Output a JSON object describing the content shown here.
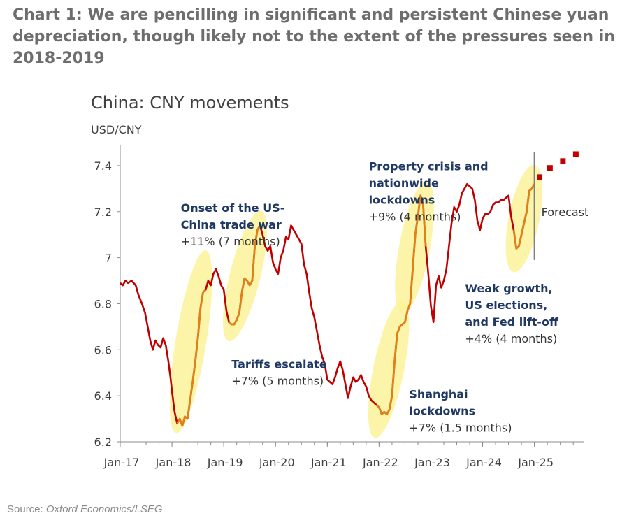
{
  "heading": "Chart 1: We are pencilling in significant and persistent Chinese yuan depreciation, though likely not to the extent of the pressures seen in 2018-2019",
  "source_label": "Source:",
  "source_text": "Oxford Economics/LSEG",
  "colors": {
    "line": "#c00000",
    "highlight_line": "#e0801a",
    "ellipse": "#fbf39a",
    "forecast": "#c00000",
    "axis": "#8c8c8c",
    "annotation_bold": "#1f3864",
    "text": "#333333"
  },
  "chart_data": {
    "type": "line",
    "title": "China: CNY movements",
    "ylabel": "USD/CNY",
    "xlabel": "",
    "ylim": [
      6.2,
      7.5
    ],
    "xlim": [
      2017.0,
      2025.95
    ],
    "yticks": [
      6.2,
      6.4,
      6.6,
      6.8,
      7,
      7.2,
      7.4
    ],
    "xticks": [
      {
        "t": 2017.0,
        "label": "Jan-17"
      },
      {
        "t": 2018.0,
        "label": "Jan-18"
      },
      {
        "t": 2019.0,
        "label": "Jan-19"
      },
      {
        "t": 2020.0,
        "label": "Jan-20"
      },
      {
        "t": 2021.0,
        "label": "Jan-21"
      },
      {
        "t": 2022.0,
        "label": "Jan-22"
      },
      {
        "t": 2023.0,
        "label": "Jan-23"
      },
      {
        "t": 2024.0,
        "label": "Jan-24"
      },
      {
        "t": 2025.0,
        "label": "Jan-25"
      }
    ],
    "grid": false,
    "series": [
      {
        "points": [
          [
            2017.0,
            6.89
          ],
          [
            2017.05,
            6.88
          ],
          [
            2017.1,
            6.9
          ],
          [
            2017.15,
            6.89
          ],
          [
            2017.22,
            6.9
          ],
          [
            2017.3,
            6.88
          ],
          [
            2017.35,
            6.84
          ],
          [
            2017.42,
            6.8
          ],
          [
            2017.48,
            6.76
          ],
          [
            2017.53,
            6.7
          ],
          [
            2017.58,
            6.64
          ],
          [
            2017.63,
            6.6
          ],
          [
            2017.68,
            6.64
          ],
          [
            2017.73,
            6.62
          ],
          [
            2017.78,
            6.61
          ],
          [
            2017.83,
            6.65
          ],
          [
            2017.88,
            6.62
          ],
          [
            2017.93,
            6.55
          ],
          [
            2017.97,
            6.48
          ],
          [
            2018.0,
            6.42
          ],
          [
            2018.05,
            6.33
          ],
          [
            2018.1,
            6.28
          ],
          [
            2018.15,
            6.3
          ],
          [
            2018.2,
            6.27
          ],
          [
            2018.25,
            6.31
          ],
          [
            2018.3,
            6.3
          ],
          [
            2018.35,
            6.38
          ],
          [
            2018.4,
            6.46
          ],
          [
            2018.45,
            6.55
          ],
          [
            2018.5,
            6.65
          ],
          [
            2018.55,
            6.78
          ],
          [
            2018.6,
            6.85
          ],
          [
            2018.65,
            6.86
          ],
          [
            2018.7,
            6.9
          ],
          [
            2018.75,
            6.88
          ],
          [
            2018.8,
            6.93
          ],
          [
            2018.85,
            6.95
          ],
          [
            2018.9,
            6.92
          ],
          [
            2018.95,
            6.88
          ],
          [
            2019.0,
            6.86
          ],
          [
            2019.05,
            6.77
          ],
          [
            2019.1,
            6.72
          ],
          [
            2019.15,
            6.71
          ],
          [
            2019.2,
            6.71
          ],
          [
            2019.25,
            6.73
          ],
          [
            2019.3,
            6.76
          ],
          [
            2019.35,
            6.85
          ],
          [
            2019.4,
            6.91
          ],
          [
            2019.45,
            6.9
          ],
          [
            2019.5,
            6.88
          ],
          [
            2019.55,
            6.9
          ],
          [
            2019.6,
            7.05
          ],
          [
            2019.65,
            7.12
          ],
          [
            2019.7,
            7.14
          ],
          [
            2019.75,
            7.1
          ],
          [
            2019.8,
            7.05
          ],
          [
            2019.85,
            7.03
          ],
          [
            2019.9,
            7.05
          ],
          [
            2019.95,
            6.98
          ],
          [
            2020.0,
            6.95
          ],
          [
            2020.05,
            6.93
          ],
          [
            2020.1,
            7.0
          ],
          [
            2020.15,
            7.03
          ],
          [
            2020.2,
            7.09
          ],
          [
            2020.25,
            7.08
          ],
          [
            2020.3,
            7.14
          ],
          [
            2020.35,
            7.12
          ],
          [
            2020.4,
            7.1
          ],
          [
            2020.45,
            7.08
          ],
          [
            2020.5,
            7.06
          ],
          [
            2020.55,
            6.97
          ],
          [
            2020.6,
            6.93
          ],
          [
            2020.65,
            6.85
          ],
          [
            2020.7,
            6.78
          ],
          [
            2020.75,
            6.74
          ],
          [
            2020.8,
            6.68
          ],
          [
            2020.85,
            6.62
          ],
          [
            2020.9,
            6.57
          ],
          [
            2020.95,
            6.54
          ],
          [
            2021.0,
            6.47
          ],
          [
            2021.05,
            6.46
          ],
          [
            2021.1,
            6.45
          ],
          [
            2021.15,
            6.48
          ],
          [
            2021.2,
            6.52
          ],
          [
            2021.25,
            6.55
          ],
          [
            2021.3,
            6.51
          ],
          [
            2021.35,
            6.45
          ],
          [
            2021.4,
            6.39
          ],
          [
            2021.45,
            6.44
          ],
          [
            2021.5,
            6.48
          ],
          [
            2021.55,
            6.46
          ],
          [
            2021.6,
            6.47
          ],
          [
            2021.65,
            6.49
          ],
          [
            2021.7,
            6.46
          ],
          [
            2021.75,
            6.44
          ],
          [
            2021.8,
            6.4
          ],
          [
            2021.85,
            6.38
          ],
          [
            2021.9,
            6.37
          ],
          [
            2021.95,
            6.36
          ],
          [
            2022.0,
            6.35
          ],
          [
            2022.05,
            6.32
          ],
          [
            2022.1,
            6.33
          ],
          [
            2022.15,
            6.32
          ],
          [
            2022.2,
            6.34
          ],
          [
            2022.25,
            6.4
          ],
          [
            2022.3,
            6.55
          ],
          [
            2022.35,
            6.67
          ],
          [
            2022.4,
            6.7
          ],
          [
            2022.45,
            6.71
          ],
          [
            2022.5,
            6.72
          ],
          [
            2022.55,
            6.77
          ],
          [
            2022.6,
            6.8
          ],
          [
            2022.65,
            6.95
          ],
          [
            2022.7,
            7.1
          ],
          [
            2022.75,
            7.18
          ],
          [
            2022.8,
            7.27
          ],
          [
            2022.85,
            7.23
          ],
          [
            2022.9,
            7.05
          ],
          [
            2022.95,
            6.93
          ],
          [
            2023.0,
            6.79
          ],
          [
            2023.05,
            6.72
          ],
          [
            2023.1,
            6.88
          ],
          [
            2023.15,
            6.92
          ],
          [
            2023.2,
            6.87
          ],
          [
            2023.25,
            6.9
          ],
          [
            2023.3,
            6.95
          ],
          [
            2023.35,
            7.05
          ],
          [
            2023.4,
            7.15
          ],
          [
            2023.45,
            7.22
          ],
          [
            2023.5,
            7.2
          ],
          [
            2023.55,
            7.23
          ],
          [
            2023.6,
            7.28
          ],
          [
            2023.65,
            7.3
          ],
          [
            2023.7,
            7.32
          ],
          [
            2023.75,
            7.31
          ],
          [
            2023.8,
            7.3
          ],
          [
            2023.85,
            7.25
          ],
          [
            2023.9,
            7.16
          ],
          [
            2023.95,
            7.12
          ],
          [
            2024.0,
            7.17
          ],
          [
            2024.05,
            7.19
          ],
          [
            2024.1,
            7.19
          ],
          [
            2024.15,
            7.2
          ],
          [
            2024.2,
            7.23
          ],
          [
            2024.25,
            7.24
          ],
          [
            2024.3,
            7.24
          ],
          [
            2024.35,
            7.25
          ],
          [
            2024.4,
            7.25
          ],
          [
            2024.45,
            7.26
          ],
          [
            2024.5,
            7.27
          ],
          [
            2024.55,
            7.18
          ],
          [
            2024.6,
            7.12
          ],
          [
            2024.65,
            7.04
          ],
          [
            2024.7,
            7.05
          ],
          [
            2024.75,
            7.1
          ],
          [
            2024.8,
            7.15
          ],
          [
            2024.85,
            7.2
          ],
          [
            2024.9,
            7.29
          ],
          [
            2024.95,
            7.3
          ],
          [
            2025.0,
            7.32
          ]
        ]
      },
      {
        "name": "Forecast",
        "marker": "square",
        "points": [
          [
            2025.1,
            7.35
          ],
          [
            2025.3,
            7.39
          ],
          [
            2025.55,
            7.42
          ],
          [
            2025.8,
            7.45
          ]
        ]
      }
    ],
    "highlights": [
      {
        "t": [
          2018.08,
          2018.65
        ],
        "ellipse_y": [
          6.24,
          7.03
        ]
      },
      {
        "t": [
          2019.1,
          2019.72
        ],
        "ellipse_y": [
          6.64,
          7.2
        ]
      },
      {
        "t": [
          2021.92,
          2022.45
        ],
        "ellipse_y": [
          6.22,
          6.81
        ]
      },
      {
        "t": [
          2022.45,
          2022.92
        ],
        "ellipse_y": [
          6.76,
          7.33
        ]
      },
      {
        "t": [
          2024.6,
          2025.0
        ],
        "ellipse_y": [
          6.94,
          7.4
        ]
      }
    ],
    "forecast_divider": {
      "t": 2025.0,
      "y": [
        6.99,
        7.46
      ],
      "label": "Forecast"
    },
    "annotations": [
      {
        "bold": [
          "Onset of the US-",
          "China trade war"
        ],
        "detail": "+11% (7 months)",
        "anchor": [
          2018.17,
          7.2
        ]
      },
      {
        "bold": [
          "Tariffs escalate"
        ],
        "detail": "+7% (5 months)",
        "anchor": [
          2019.15,
          6.52
        ]
      },
      {
        "bold": [
          "Property crisis and",
          "nationwide",
          "lockdowns"
        ],
        "detail": "+9% (4 months)",
        "anchor": [
          2021.8,
          7.38
        ]
      },
      {
        "bold": [
          "Shanghai",
          "lockdowns"
        ],
        "detail": "+7% (1.5 months)",
        "anchor": [
          2022.58,
          6.39
        ]
      },
      {
        "bold": [
          "Weak growth,",
          "US elections,",
          "and Fed lift-off"
        ],
        "detail": "+4% (4 months)",
        "anchor": [
          2023.66,
          6.85
        ]
      }
    ]
  }
}
